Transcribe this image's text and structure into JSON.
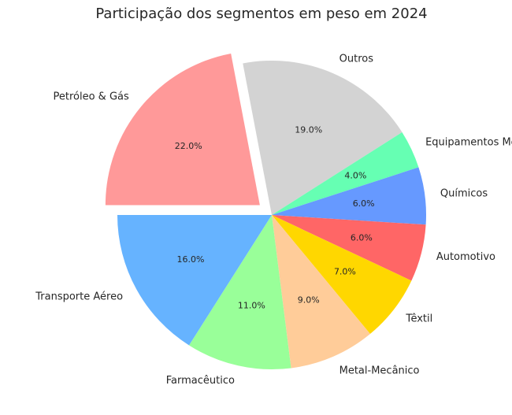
{
  "chart_data": {
    "type": "pie",
    "title": "Participação dos segmentos em peso em 2024",
    "start_angle_deg": 180,
    "direction": "clockwise",
    "slices": [
      {
        "label": "Petróleo & Gás",
        "value": 22.0,
        "pct_label": "22.0%",
        "color": "#ff9999",
        "exploded": true
      },
      {
        "label": "Outros",
        "value": 19.0,
        "pct_label": "19.0%",
        "color": "#d3d3d3",
        "exploded": false
      },
      {
        "label": "Equipamentos Médicos",
        "value": 4.0,
        "pct_label": "4.0%",
        "color": "#66ffb3",
        "exploded": false
      },
      {
        "label": "Químicos",
        "value": 6.0,
        "pct_label": "6.0%",
        "color": "#6699ff",
        "exploded": false
      },
      {
        "label": "Automotivo",
        "value": 6.0,
        "pct_label": "6.0%",
        "color": "#ff6666",
        "exploded": false
      },
      {
        "label": "Têxtil",
        "value": 7.0,
        "pct_label": "7.0%",
        "color": "#ffd700",
        "exploded": false
      },
      {
        "label": "Metal-Mecânico",
        "value": 9.0,
        "pct_label": "9.0%",
        "color": "#ffcc99",
        "exploded": false
      },
      {
        "label": "Farmacêutico",
        "value": 11.0,
        "pct_label": "11.0%",
        "color": "#99ff99",
        "exploded": false
      },
      {
        "label": "Transporte Aéreo",
        "value": 16.0,
        "pct_label": "16.0%",
        "color": "#66b3ff",
        "exploded": false
      }
    ]
  }
}
